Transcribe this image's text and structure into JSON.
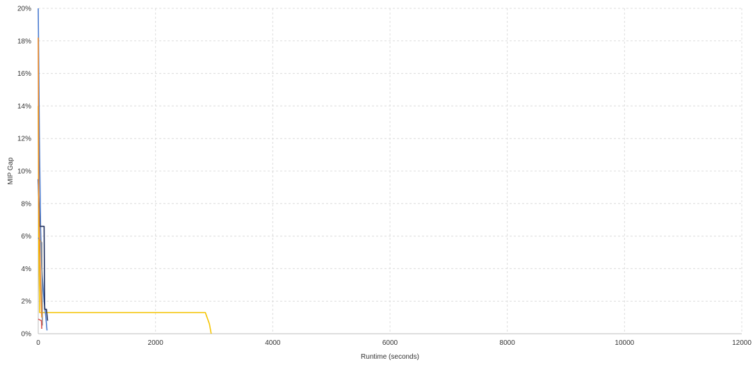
{
  "chart_data": {
    "type": "line",
    "title": "",
    "xlabel": "Runtime (seconds)",
    "ylabel": "MIP Gap",
    "xlim": [
      0,
      12000
    ],
    "ylim": [
      0,
      20
    ],
    "x_ticks": [
      0,
      2000,
      4000,
      6000,
      8000,
      10000,
      12000
    ],
    "x_tick_labels": [
      "0",
      "2000",
      "4000",
      "6000",
      "8000",
      "10000",
      "12000"
    ],
    "y_ticks": [
      0,
      2,
      4,
      6,
      8,
      10,
      12,
      14,
      16,
      18,
      20
    ],
    "y_tick_labels": [
      "0%",
      "2%",
      "4%",
      "6%",
      "8%",
      "10%",
      "12%",
      "14%",
      "16%",
      "18%",
      "20%"
    ],
    "grid": true,
    "legend": "none",
    "series": [
      {
        "color": "#f5c400",
        "points": [
          [
            0,
            14.0
          ],
          [
            10,
            5.0
          ],
          [
            25,
            1.3
          ],
          [
            2850,
            1.3
          ],
          [
            2920,
            0.6
          ],
          [
            2950,
            0.0
          ]
        ]
      },
      {
        "color": "#4a7bd0",
        "points": [
          [
            0,
            20.0
          ],
          [
            20,
            12.0
          ],
          [
            40,
            6.5
          ],
          [
            60,
            4.0
          ],
          [
            100,
            2.0
          ],
          [
            130,
            1.0
          ],
          [
            150,
            0.2
          ]
        ]
      },
      {
        "color": "#1f2f5e",
        "points": [
          [
            0,
            9.5
          ],
          [
            25,
            6.6
          ],
          [
            100,
            6.6
          ],
          [
            110,
            1.5
          ],
          [
            140,
            1.5
          ],
          [
            160,
            0.8
          ]
        ]
      },
      {
        "color": "#8a8a8a",
        "points": [
          [
            0,
            5.9
          ],
          [
            60,
            5.6
          ],
          [
            70,
            0.5
          ]
        ]
      },
      {
        "color": "#f08a24",
        "points": [
          [
            0,
            18.2
          ],
          [
            10,
            8.0
          ],
          [
            25,
            5.5
          ],
          [
            40,
            3.0
          ],
          [
            60,
            1.0
          ]
        ]
      },
      {
        "color": "#d9534f",
        "points": [
          [
            0,
            0.9
          ],
          [
            55,
            0.8
          ],
          [
            60,
            0.3
          ]
        ]
      }
    ]
  }
}
